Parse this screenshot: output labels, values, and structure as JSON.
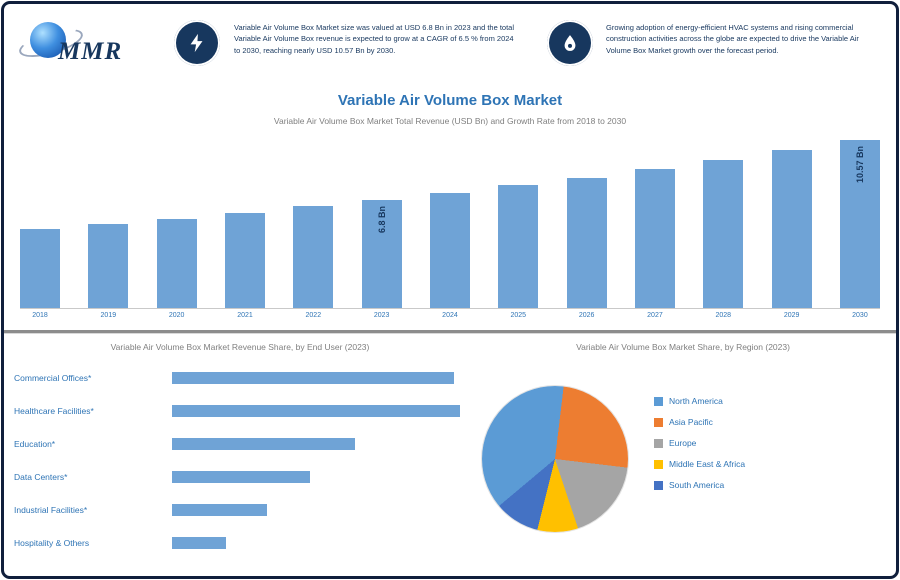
{
  "frame": {
    "border_color": "#101f3c",
    "background": "#ffffff"
  },
  "header": {
    "logo": {
      "text": "MMR"
    },
    "badges": [
      {
        "icon": "lightning-icon",
        "text": "Variable Air Volume Box Market size was valued at USD 6.8 Bn in 2023 and the total Variable Air Volume Box revenue is expected to grow at a CAGR of 6.5 % from 2024 to 2030, reaching nearly USD 10.57 Bn by 2030."
      },
      {
        "icon": "flame-icon",
        "text": "Growing adoption of energy-efficient HVAC systems and rising commercial construction activities across the globe are expected to drive the Variable Air Volume Box Market growth over the forecast period."
      }
    ]
  },
  "title_block": {
    "title": "Variable Air Volume Box Market",
    "subtitle": "Variable Air Volume Box Market Total Revenue (USD Bn) and Growth Rate from 2018 to 2030"
  },
  "colors": {
    "accent_blue": "#2e74b5",
    "navy": "#17375e",
    "bar_blue": "#6fa3d6",
    "gray_text": "#7f7f7f"
  },
  "chart_data": [
    {
      "type": "bar",
      "title": "Variable Air Volume Box Market Revenue (USD Bn)",
      "x": [
        "2018",
        "2019",
        "2020",
        "2021",
        "2022",
        "2023",
        "2024",
        "2025",
        "2026",
        "2027",
        "2028",
        "2029",
        "2030"
      ],
      "values": [
        4.96,
        5.29,
        5.63,
        6.0,
        6.39,
        6.8,
        7.24,
        7.71,
        8.21,
        8.75,
        9.32,
        9.92,
        10.57
      ],
      "unit": "USD Bn",
      "ylim": [
        0,
        11
      ],
      "grid": false,
      "bar_color": "#6fa3d6",
      "annotations": [
        {
          "index": 5,
          "text": "6.8 Bn"
        },
        {
          "index": 12,
          "text": "10.57 Bn"
        }
      ]
    },
    {
      "type": "bar",
      "orientation": "horizontal",
      "title": "Variable Air Volume Box Market Revenue Share, by End User (2023)",
      "categories": [
        "Commercial Offices*",
        "Healthcare Facilities*",
        "Education*",
        "Data Centers*",
        "Industrial Facilities*",
        "Hospitality & Others"
      ],
      "values": [
        30.5,
        31.2,
        19.8,
        15.0,
        10.3,
        5.9
      ],
      "unit": "%",
      "grid": false,
      "bar_color": "#6fa3d6"
    },
    {
      "type": "pie",
      "title": "Variable Air Volume Box Market Share, by Region (2023)",
      "labels": [
        "North America",
        "Asia Pacific",
        "Europe",
        "Middle East & Africa",
        "South America"
      ],
      "values": [
        38,
        25,
        18,
        9,
        10
      ],
      "unit": "%",
      "colors": [
        "#5b9bd5",
        "#ed7d31",
        "#a5a5a5",
        "#ffc000",
        "#4472c4"
      ],
      "start_angle_deg": 230,
      "legend_position": "right"
    }
  ]
}
